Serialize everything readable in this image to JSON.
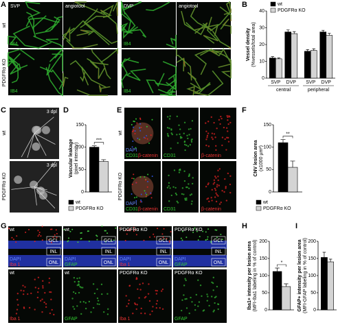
{
  "panel_a": {
    "label": "A",
    "rows": [
      "wt",
      "PDGFRα KO"
    ],
    "columns": [
      "SVP",
      "angiotool",
      "DVP",
      "angiotool"
    ],
    "stain": "IB4"
  },
  "panel_b": {
    "label": "B",
    "chart": {
      "type": "bar",
      "y_label": [
        "Vessel density",
        "(%vessels/total area)"
      ],
      "categories": [
        "SVP",
        "DVP",
        "SVP",
        "DVP"
      ],
      "groups": [
        "central",
        "peripheral"
      ],
      "series": [
        {
          "name": "wt",
          "color": "#000000",
          "values": [
            12,
            27.5,
            16,
            27.5
          ],
          "errors": [
            0.8,
            1.2,
            1,
            1
          ]
        },
        {
          "name": "PDGFRα KO",
          "color": "#d4d4d4",
          "values": [
            11.5,
            26.5,
            16.5,
            25.5
          ],
          "errors": [
            0.6,
            1.2,
            1,
            1.2
          ]
        }
      ],
      "ylim": [
        0,
        40
      ],
      "yticks": [
        0,
        10,
        20,
        30,
        40
      ],
      "legend": "top"
    }
  },
  "panel_c": {
    "label": "C",
    "rows": [
      "wt",
      "PDGFRα KO"
    ],
    "timepoint": "3 dpl"
  },
  "panel_d": {
    "label": "D",
    "chart": {
      "type": "bar",
      "y_label": [
        "Vascular leakage",
        "(pixel intensity)"
      ],
      "series": [
        {
          "name": "wt",
          "color": "#000000",
          "values": [
            100
          ],
          "errors": [
            3
          ]
        },
        {
          "name": "PDGFRα KO",
          "color": "#d4d4d4",
          "values": [
            68
          ],
          "errors": [
            4
          ]
        }
      ],
      "ylim": [
        0,
        150
      ],
      "yticks": [
        0,
        50,
        100,
        150
      ],
      "significance": "***",
      "legend": "bottom"
    }
  },
  "panel_e": {
    "label": "E",
    "rows": [
      "wt",
      "PDGFRα KO"
    ],
    "stains": [
      "DAPI",
      "CD31",
      "β-catenin"
    ]
  },
  "panel_f": {
    "label": "F",
    "chart": {
      "type": "bar",
      "y_label": [
        "CNV lesion area",
        "(x1000 µm²)"
      ],
      "series": [
        {
          "name": "wt",
          "color": "#000000",
          "values": [
            110
          ],
          "errors": [
            7
          ]
        },
        {
          "name": "PDGFRα KO",
          "color": "#d4d4d4",
          "values": [
            55
          ],
          "errors": [
            14
          ]
        }
      ],
      "ylim": [
        0,
        150
      ],
      "yticks": [
        0,
        50,
        100,
        150
      ],
      "significance": "**",
      "legend": "bottom"
    }
  },
  "panel_g": {
    "label": "G",
    "columns": [
      "wt",
      "wt",
      "PDGFRα KO",
      "PDGFRα KO"
    ],
    "layers": [
      "GCL",
      "INL",
      "ONL"
    ],
    "dapi": "DAPI",
    "stains": [
      "Iba 1",
      "GFAP"
    ]
  },
  "panel_h": {
    "label": "H",
    "chart": {
      "type": "bar",
      "y_label": [
        "Iba1+ intensity per lesion area",
        "(MFI-Iba1 labeling in % of control)"
      ],
      "series": [
        {
          "name": "wt",
          "color": "#000000",
          "values": [
            112
          ],
          "errors": [
            10
          ]
        },
        {
          "name": "PDGFRα KO",
          "color": "#d4d4d4",
          "values": [
            68
          ],
          "errors": [
            8
          ]
        }
      ],
      "ylim": [
        0,
        200
      ],
      "yticks": [
        0,
        50,
        100,
        150,
        200
      ],
      "significance": "*"
    }
  },
  "panel_i": {
    "label": "I",
    "chart": {
      "type": "bar",
      "y_label": [
        "GFAP+ intensity per lesion area",
        "(MFI-GFAP labeling in % of control)"
      ],
      "series": [
        {
          "name": "wt",
          "color": "#000000",
          "values": [
            153
          ],
          "errors": [
            15
          ]
        },
        {
          "name": "PDGFRα KO",
          "color": "#d4d4d4",
          "values": [
            140
          ],
          "errors": [
            8
          ]
        }
      ],
      "ylim": [
        0,
        200
      ],
      "yticks": [
        0,
        50,
        100,
        150,
        200
      ]
    }
  }
}
